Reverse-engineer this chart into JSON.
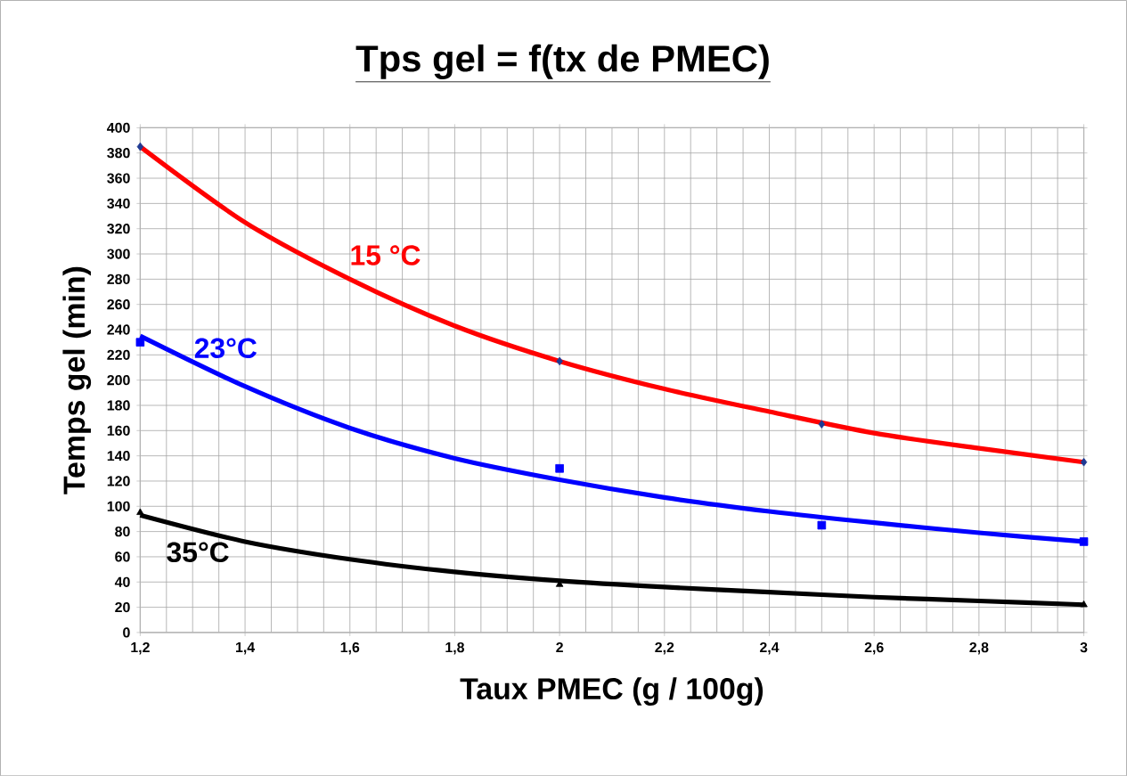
{
  "chart_data": {
    "type": "line",
    "title": "Tps gel = f(tx de PMEC)",
    "xlabel": "Taux PMEC (g / 100g)",
    "ylabel": "Temps gel (min)",
    "xlim": [
      1.2,
      3
    ],
    "ylim": [
      0,
      400
    ],
    "xticks": [
      {
        "value": 1.2,
        "label": "1,2"
      },
      {
        "value": 1.4,
        "label": "1,4"
      },
      {
        "value": 1.6,
        "label": "1,6"
      },
      {
        "value": 1.8,
        "label": "1,8"
      },
      {
        "value": 2,
        "label": "2"
      },
      {
        "value": 2.2,
        "label": "2,2"
      },
      {
        "value": 2.4,
        "label": "2,4"
      },
      {
        "value": 2.6,
        "label": "2,6"
      },
      {
        "value": 2.8,
        "label": "2,8"
      },
      {
        "value": 3,
        "label": "3"
      }
    ],
    "yticks": [
      0,
      20,
      40,
      60,
      80,
      100,
      120,
      140,
      160,
      180,
      200,
      220,
      240,
      260,
      280,
      300,
      320,
      340,
      360,
      380,
      400
    ],
    "grid": true,
    "series": [
      {
        "name": "15 °C",
        "color": "#ff0000",
        "marker": "none",
        "x": [
          1.2,
          1.4,
          1.6,
          1.8,
          2.0,
          2.2,
          2.4,
          2.6,
          2.8,
          3.0
        ],
        "values": [
          385,
          325,
          280,
          243,
          215,
          193,
          175,
          158,
          146,
          135
        ]
      },
      {
        "name": "23°C",
        "color": "#0000ff",
        "marker": "none",
        "x": [
          1.2,
          1.4,
          1.6,
          1.8,
          2.0,
          2.2,
          2.4,
          2.6,
          2.8,
          3.0
        ],
        "values": [
          235,
          195,
          162,
          138,
          121,
          107,
          96,
          87,
          79,
          72
        ]
      },
      {
        "name": "35°C",
        "color": "#000000",
        "marker": "none",
        "x": [
          1.2,
          1.4,
          1.6,
          1.8,
          2.0,
          2.2,
          2.4,
          2.6,
          2.8,
          3.0
        ],
        "values": [
          93,
          72,
          58,
          48,
          41,
          36,
          32,
          28,
          25,
          22
        ]
      },
      {
        "type": "scatter",
        "color": "#1f3a93",
        "marker": "diamond",
        "x": [
          1.2,
          2,
          2.5,
          3
        ],
        "values": [
          385,
          215,
          165,
          135
        ]
      },
      {
        "type": "scatter",
        "color": "#0000ff",
        "marker": "square",
        "x": [
          1.2,
          2,
          2.5,
          3
        ],
        "values": [
          230,
          130,
          85,
          72
        ]
      },
      {
        "type": "scatter",
        "color": "#000000",
        "marker": "triangle",
        "x": [
          1.2,
          2,
          3
        ],
        "values": [
          95,
          38,
          22
        ]
      }
    ]
  }
}
